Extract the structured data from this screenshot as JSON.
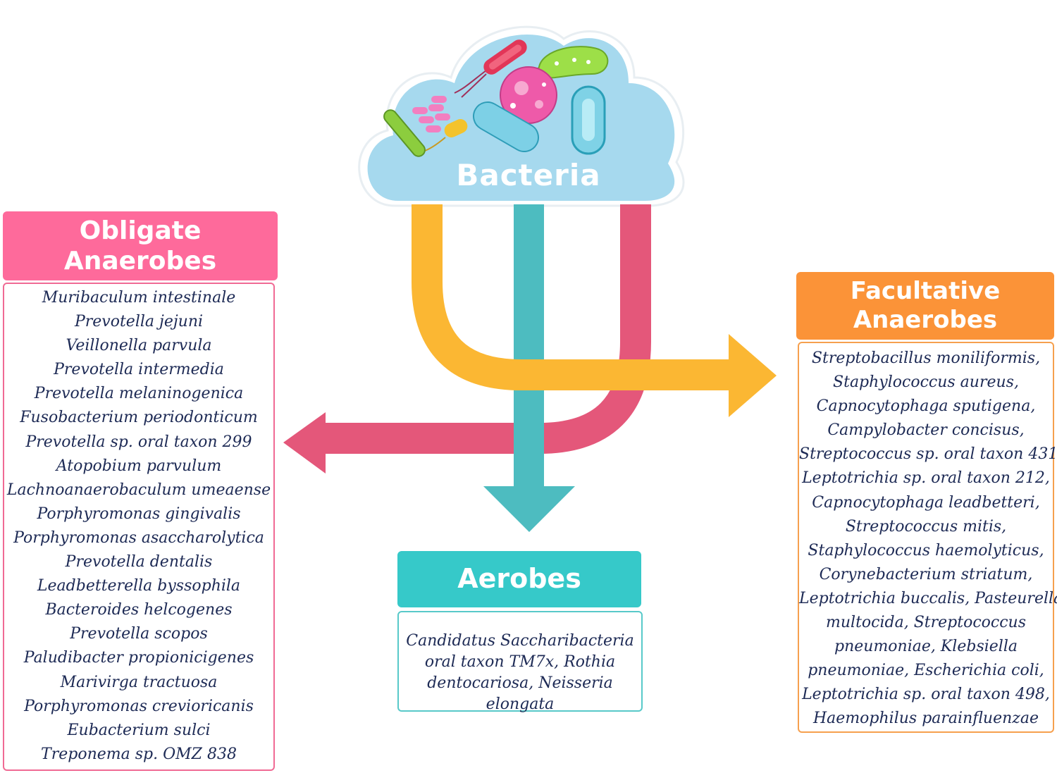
{
  "cloud": {
    "title": "Bacteria"
  },
  "categories": {
    "obligate": {
      "title_line1": "Obligate",
      "title_line2": "Anaerobes",
      "color": "#fe6a9b",
      "items": [
        "Muribaculum intestinale",
        "Prevotella jejuni",
        "Veillonella parvula",
        "Prevotella intermedia",
        "Prevotella melaninogenica",
        "Fusobacterium periodonticum",
        "Prevotella sp. oral taxon 299",
        "Atopobium parvulum",
        "Lachnoanaerobaculum umeaense",
        "Porphyromonas gingivalis",
        "Porphyromonas asaccharolytica",
        "Prevotella dentalis",
        "Leadbetterella byssophila",
        "Bacteroides helcogenes",
        "Prevotella scopos",
        "Paludibacter propionicigenes",
        "Marivirga tractuosa",
        "Porphyromonas crevioricanis",
        "Eubacterium sulci",
        "Treponema sp. OMZ 838"
      ]
    },
    "facultative": {
      "title_line1": "Facultative",
      "title_line2": "Anaerobes",
      "color": "#fb9338",
      "lines": [
        "Streptobacillus moniliformis,",
        "Staphylococcus aureus,",
        "Capnocytophaga sputigena,",
        "Campylobacter concisus,",
        "Streptococcus sp. oral taxon 431,",
        "Leptotrichia sp. oral taxon 212,",
        "Capnocytophaga leadbetteri,",
        "Streptococcus mitis,",
        "Staphylococcus haemolyticus,",
        "Corynebacterium striatum,",
        "Leptotrichia buccalis, Pasteurella",
        "multocida, Streptococcus",
        "pneumoniae, Klebsiella",
        "pneumoniae, Escherichia coli,",
        "Leptotrichia sp. oral taxon 498,",
        "Haemophilus parainfluenzae"
      ]
    },
    "aerobes": {
      "title": "Aerobes",
      "color": "#36c9c9",
      "text": "Candidatus Saccharibacteria oral taxon TM7x, Rothia dentocariosa, Neisseria elongata"
    }
  },
  "arrow_colors": {
    "yellow": "#fbb733",
    "teal": "#4dbcc0",
    "pink": "#e4577a"
  }
}
